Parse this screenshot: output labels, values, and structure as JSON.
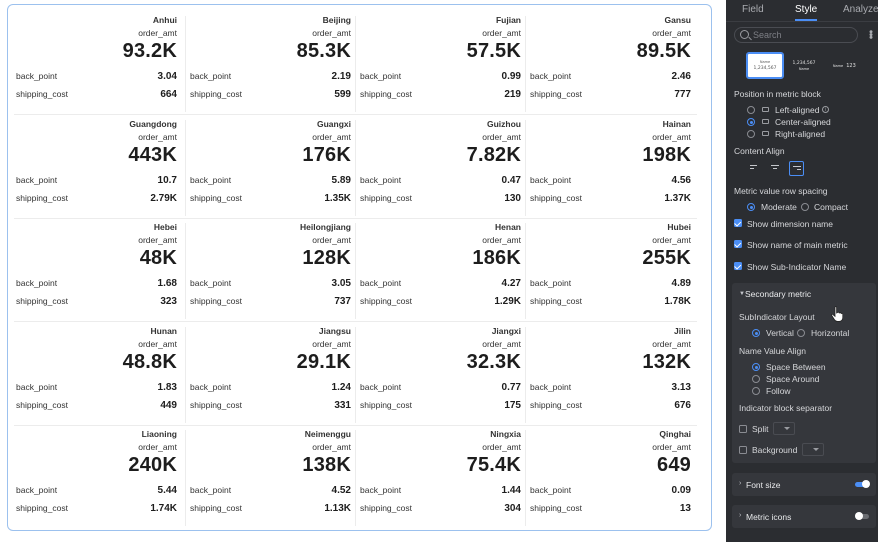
{
  "grid": {
    "rows": [
      [
        {
          "dim": "Anhui",
          "metric": "order_amt",
          "value": "93.2K",
          "sub1_name": "back_point",
          "sub1_val": "3.04",
          "sub2_name": "shipping_cost",
          "sub2_val": "664"
        },
        {
          "dim": "Beijing",
          "metric": "order_amt",
          "value": "85.3K",
          "sub1_name": "back_point",
          "sub1_val": "2.19",
          "sub2_name": "shipping_cost",
          "sub2_val": "599"
        },
        {
          "dim": "Fujian",
          "metric": "order_amt",
          "value": "57.5K",
          "sub1_name": "back_point",
          "sub1_val": "0.99",
          "sub2_name": "shipping_cost",
          "sub2_val": "219"
        },
        {
          "dim": "Gansu",
          "metric": "order_amt",
          "value": "89.5K",
          "sub1_name": "back_point",
          "sub1_val": "2.46",
          "sub2_name": "shipping_cost",
          "sub2_val": "777"
        }
      ],
      [
        {
          "dim": "Guangdong",
          "metric": "order_amt",
          "value": "443K",
          "sub1_name": "back_point",
          "sub1_val": "10.7",
          "sub2_name": "shipping_cost",
          "sub2_val": "2.79K"
        },
        {
          "dim": "Guangxi",
          "metric": "order_amt",
          "value": "176K",
          "sub1_name": "back_point",
          "sub1_val": "5.89",
          "sub2_name": "shipping_cost",
          "sub2_val": "1.35K"
        },
        {
          "dim": "Guizhou",
          "metric": "order_amt",
          "value": "7.82K",
          "sub1_name": "back_point",
          "sub1_val": "0.47",
          "sub2_name": "shipping_cost",
          "sub2_val": "130"
        },
        {
          "dim": "Hainan",
          "metric": "order_amt",
          "value": "198K",
          "sub1_name": "back_point",
          "sub1_val": "4.56",
          "sub2_name": "shipping_cost",
          "sub2_val": "1.37K"
        }
      ],
      [
        {
          "dim": "Hebei",
          "metric": "order_amt",
          "value": "48K",
          "sub1_name": "back_point",
          "sub1_val": "1.68",
          "sub2_name": "shipping_cost",
          "sub2_val": "323"
        },
        {
          "dim": "Heilongjiang",
          "metric": "order_amt",
          "value": "128K",
          "sub1_name": "back_point",
          "sub1_val": "3.05",
          "sub2_name": "shipping_cost",
          "sub2_val": "737"
        },
        {
          "dim": "Henan",
          "metric": "order_amt",
          "value": "186K",
          "sub1_name": "back_point",
          "sub1_val": "4.27",
          "sub2_name": "shipping_cost",
          "sub2_val": "1.29K"
        },
        {
          "dim": "Hubei",
          "metric": "order_amt",
          "value": "255K",
          "sub1_name": "back_point",
          "sub1_val": "4.89",
          "sub2_name": "shipping_cost",
          "sub2_val": "1.78K"
        }
      ],
      [
        {
          "dim": "Hunan",
          "metric": "order_amt",
          "value": "48.8K",
          "sub1_name": "back_point",
          "sub1_val": "1.83",
          "sub2_name": "shipping_cost",
          "sub2_val": "449"
        },
        {
          "dim": "Jiangsu",
          "metric": "order_amt",
          "value": "29.1K",
          "sub1_name": "back_point",
          "sub1_val": "1.24",
          "sub2_name": "shipping_cost",
          "sub2_val": "331"
        },
        {
          "dim": "Jiangxi",
          "metric": "order_amt",
          "value": "32.3K",
          "sub1_name": "back_point",
          "sub1_val": "0.77",
          "sub2_name": "shipping_cost",
          "sub2_val": "175"
        },
        {
          "dim": "Jilin",
          "metric": "order_amt",
          "value": "132K",
          "sub1_name": "back_point",
          "sub1_val": "3.13",
          "sub2_name": "shipping_cost",
          "sub2_val": "676"
        }
      ],
      [
        {
          "dim": "Liaoning",
          "metric": "order_amt",
          "value": "240K",
          "sub1_name": "back_point",
          "sub1_val": "5.44",
          "sub2_name": "shipping_cost",
          "sub2_val": "1.74K"
        },
        {
          "dim": "Neimenggu",
          "metric": "order_amt",
          "value": "138K",
          "sub1_name": "back_point",
          "sub1_val": "4.52",
          "sub2_name": "shipping_cost",
          "sub2_val": "1.13K"
        },
        {
          "dim": "Ningxia",
          "metric": "order_amt",
          "value": "75.4K",
          "sub1_name": "back_point",
          "sub1_val": "1.44",
          "sub2_name": "shipping_cost",
          "sub2_val": "304"
        },
        {
          "dim": "Qinghai",
          "metric": "order_amt",
          "value": "649",
          "sub1_name": "back_point",
          "sub1_val": "0.09",
          "sub2_name": "shipping_cost",
          "sub2_val": "13"
        }
      ]
    ]
  },
  "panel": {
    "tabs": {
      "field": "Field",
      "style": "Style",
      "analyze": "Analyze"
    },
    "search_placeholder": "Search",
    "thumbs": [
      {
        "line1": "Name",
        "line2": "1,234,567"
      },
      {
        "line1": "1,234,567",
        "line2": "Name"
      },
      {
        "line1": "Name",
        "line2": "123"
      }
    ],
    "position_title": "Position in metric block",
    "position_options": {
      "left": "Left-aligned",
      "center": "Center-aligned",
      "right": "Right-aligned"
    },
    "content_align_title": "Content Align",
    "spacing_title": "Metric value row spacing",
    "spacing_options": {
      "moderate": "Moderate",
      "compact": "Compact"
    },
    "checks": {
      "show_dim": "Show dimension name",
      "show_main": "Show name of main metric",
      "show_sub": "Show Sub-Indicator Name"
    },
    "secondary": {
      "title": "Secondary metric",
      "layout_title": "SubIndicator Layout",
      "layout_options": {
        "vertical": "Vertical",
        "horizontal": "Horizontal"
      },
      "nva_title": "Name Value Align",
      "nva_options": {
        "between": "Space Between",
        "around": "Space Around",
        "follow": "Follow"
      },
      "separator_title": "Indicator block separator",
      "split": "Split",
      "background": "Background"
    },
    "font_size": "Font size",
    "metric_icons": "Metric icons"
  },
  "colors": {
    "accent": "#4b8ef5",
    "panel_bg": "#2b2d31",
    "section_bg": "#35373c",
    "card_border": "#9cc1ee"
  }
}
